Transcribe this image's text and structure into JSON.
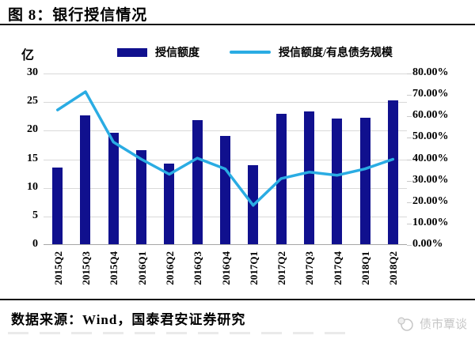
{
  "title": "图 8：银行授信情况",
  "source_text": "数据来源：Wind，国泰君安证券研究",
  "watermark_text": "债市覃谈",
  "colors": {
    "bar": "#10108E",
    "line": "#2AACE3",
    "grid": "#d9d9d9",
    "watermark": "#c6c6c6"
  },
  "chart_data": {
    "type": "bar",
    "title": "图 8：银行授信情况",
    "categories": [
      "2015Q2",
      "2015Q3",
      "2015Q4",
      "2016Q1",
      "2016Q2",
      "2016Q3",
      "2016Q4",
      "2017Q1",
      "2017Q2",
      "2017Q3",
      "2017Q4",
      "2018Q1",
      "2018Q2"
    ],
    "series": [
      {
        "name": "授信额度",
        "type": "bar",
        "axis": "left",
        "color": "#10108E",
        "values": [
          13.5,
          22.7,
          19.7,
          16.6,
          14.2,
          21.8,
          19.1,
          13.9,
          23.0,
          23.3,
          22.1,
          22.3,
          25.3
        ]
      },
      {
        "name": "授信额度/有息债务规模",
        "type": "line",
        "axis": "right",
        "color": "#2AACE3",
        "values": [
          63.0,
          71.5,
          48.0,
          40.0,
          33.0,
          40.5,
          35.5,
          18.5,
          31.0,
          34.0,
          32.5,
          35.5,
          40.0
        ]
      }
    ],
    "left_axis": {
      "unit": "亿",
      "min": 0,
      "max": 30,
      "ticks": [
        0,
        5,
        10,
        15,
        20,
        25,
        30
      ]
    },
    "right_axis": {
      "min": 0,
      "max": 80,
      "tick_labels": [
        "0.00%",
        "10.00%",
        "20.00%",
        "30.00%",
        "40.00%",
        "50.00%",
        "60.00%",
        "70.00%",
        "80.00%"
      ]
    },
    "grid": true,
    "legend_position": "top"
  }
}
